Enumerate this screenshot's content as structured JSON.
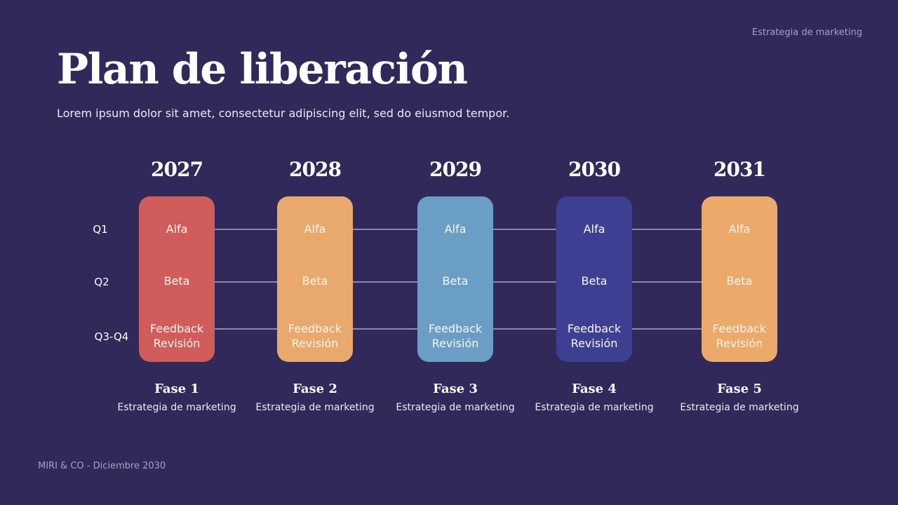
{
  "header": {
    "top_label": "Estrategia de marketing",
    "title": "Plan de liberación",
    "subtitle": "Lorem ipsum dolor sit amet, consectetur adipiscing elit, sed do eiusmod tempor."
  },
  "rows": [
    "Q1",
    "Q2",
    "Q3-Q4"
  ],
  "phases": [
    {
      "year": "2027",
      "color": "#d15c5c",
      "items": [
        "Alfa",
        "Beta",
        "Feedback",
        "Revisión"
      ],
      "name": "Fase 1",
      "desc": "Estrategia de marketing"
    },
    {
      "year": "2028",
      "color": "#e9a96d",
      "items": [
        "Alfa",
        "Beta",
        "Feedback",
        "Revisión"
      ],
      "name": "Fase 2",
      "desc": "Estrategia de marketing"
    },
    {
      "year": "2029",
      "color": "#6a9ec4",
      "items": [
        "Alfa",
        "Beta",
        "Feedback",
        "Revisión"
      ],
      "name": "Fase 3",
      "desc": "Estrategia de marketing"
    },
    {
      "year": "2030",
      "color": "#3d3f92",
      "items": [
        "Alfa",
        "Beta",
        "Feedback",
        "Revisión"
      ],
      "name": "Fase 4",
      "desc": "Estrategia de marketing"
    },
    {
      "year": "2031",
      "color": "#eba96a",
      "items": [
        "Alfa",
        "Beta",
        "Feedback",
        "Revisión"
      ],
      "name": "Fase 5",
      "desc": "Estrategia de marketing"
    }
  ],
  "footer": {
    "text": "MIRI & CO - Diciembre 2030"
  }
}
